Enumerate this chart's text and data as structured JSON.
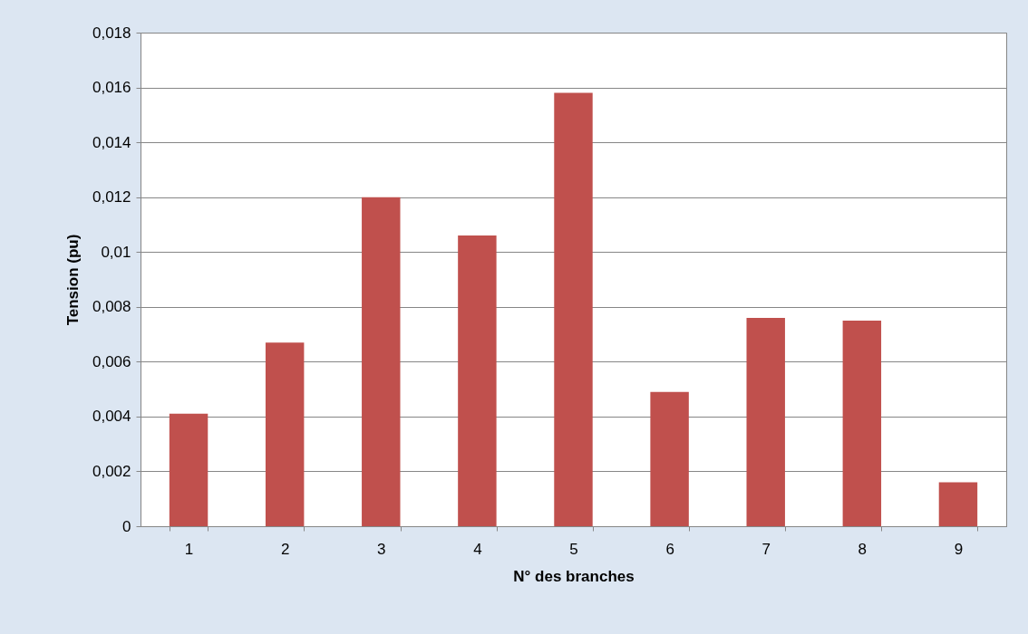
{
  "chart_data": {
    "type": "bar",
    "xlabel": "N° des branches",
    "ylabel": "Tension (pu)",
    "categories": [
      "1",
      "2",
      "3",
      "4",
      "5",
      "6",
      "7",
      "8",
      "9"
    ],
    "values": [
      0.0041,
      0.0067,
      0.012,
      0.0106,
      0.0158,
      0.0049,
      0.0076,
      0.0075,
      0.0016
    ],
    "color": "#c0504d",
    "ylim": [
      0,
      0.018
    ],
    "yticks": [
      0,
      {
        "value": 0.002,
        "label": "0,002"
      },
      {
        "value": 0.004,
        "label": "0,004"
      },
      {
        "value": 0.006,
        "label": "0,006"
      },
      {
        "value": 0.008,
        "label": "0,008"
      },
      {
        "value": 0.01,
        "label": "0,01"
      },
      {
        "value": 0.012,
        "label": "0,012"
      },
      {
        "value": 0.014,
        "label": "0,014"
      },
      {
        "value": 0.016,
        "label": "0,016"
      },
      {
        "value": 0.018,
        "label": "0,018"
      }
    ],
    "grid": "y"
  }
}
